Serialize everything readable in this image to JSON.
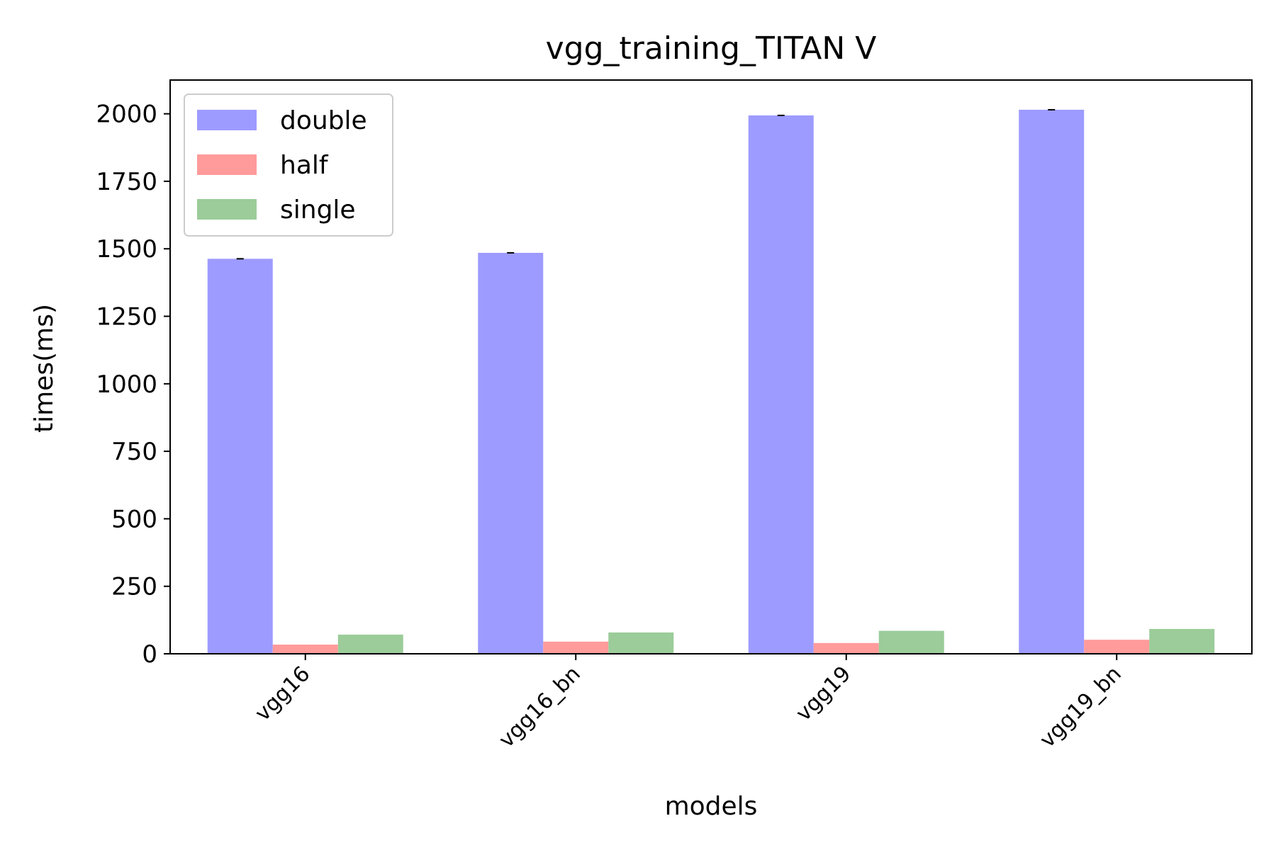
{
  "chart_data": {
    "type": "bar",
    "title": "vgg_training_TITAN V",
    "xlabel": "models",
    "ylabel": "times(ms)",
    "categories": [
      "vgg16",
      "vgg16_bn",
      "vgg19",
      "vgg19_bn"
    ],
    "series": [
      {
        "name": "double",
        "color": "#9d9bff",
        "values": [
          1463,
          1485,
          1994,
          2015
        ]
      },
      {
        "name": "half",
        "color": "#ff9b9b",
        "values": [
          34,
          45,
          40,
          52
        ]
      },
      {
        "name": "single",
        "color": "#9bcc99",
        "values": [
          71,
          79,
          85,
          92
        ]
      }
    ],
    "ylim": [
      0,
      2125
    ],
    "yticks": [
      0,
      250,
      500,
      750,
      1000,
      1250,
      1500,
      1750,
      2000
    ],
    "legend_position": "top-left",
    "grid": false
  }
}
